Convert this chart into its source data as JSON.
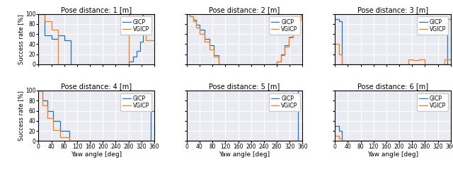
{
  "titles": [
    "Pose distance: 1 [m]",
    "Pose distance: 2 [m]",
    "Pose distance: 3 [m]",
    "Pose distance: 4 [m]",
    "Pose distance: 5 [m]",
    "Pose distance: 6 [m]"
  ],
  "xlabel": "Yaw angle [deg]",
  "ylabel": "Success rate [%]",
  "xlim": [
    0,
    360
  ],
  "ylim": [
    0,
    100
  ],
  "xticks": [
    0,
    40,
    80,
    120,
    160,
    200,
    240,
    280,
    320,
    360
  ],
  "yticks": [
    0,
    20,
    40,
    60,
    80,
    100
  ],
  "gicp_color": "#1f77b4",
  "vgicp_color": "#ff7f0e",
  "bg_color": "#eaeaf2",
  "grid_color": "#ffffff"
}
